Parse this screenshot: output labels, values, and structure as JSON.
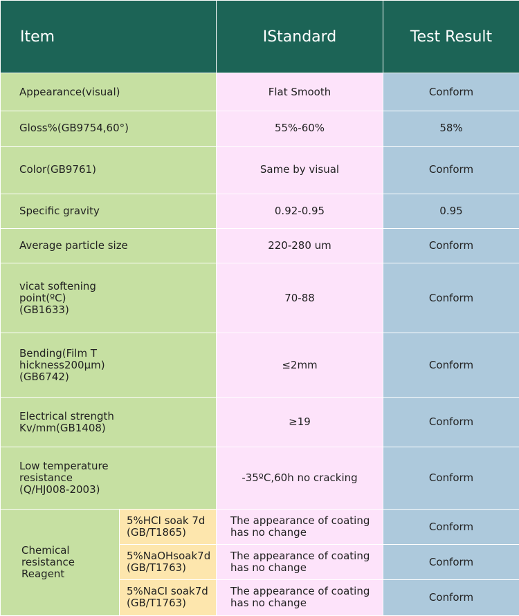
{
  "headers": {
    "item": "Item",
    "standard": "IStandard",
    "result": "Test Result"
  },
  "rows": [
    {
      "item": "Appearance(visual)",
      "standard": "Flat Smooth",
      "result": "Conform"
    },
    {
      "item": "Gloss%(GB9754,60°)",
      "standard": "55%-60%",
      "result": "58%"
    },
    {
      "item": "Color(GB9761)",
      "standard": "Same by visual",
      "result": "Conform"
    },
    {
      "item": "Specific gravity",
      "standard": "0.92-0.95",
      "result": "0.95"
    },
    {
      "item": "Average particle size",
      "standard": "220-280 um",
      "result": "Conform"
    },
    {
      "item_lines": [
        "vicat softening",
        "point(ºC)",
        "(GB1633)"
      ],
      "standard": "70-88",
      "result": "Conform"
    },
    {
      "item_lines": [
        "Bending(Film T",
        "hickness200μm)",
        "(GB6742)"
      ],
      "standard": "≤2mm",
      "result": "Conform"
    },
    {
      "item_lines": [
        "Electrical strength",
        "Kv/mm(GB1408)"
      ],
      "standard": "≥19",
      "result": "Conform"
    },
    {
      "item_lines": [
        "Low temperature",
        "resistance",
        "(Q/HJ008-2003)"
      ],
      "standard": "-35ºC,60h no cracking",
      "result": "Conform"
    }
  ],
  "chemical": {
    "label_lines": [
      "Chemical",
      "resistance",
      "Reagent"
    ],
    "subrows": [
      {
        "sub_lines": [
          "5%HCI soak 7d",
          "(GB/T1865)"
        ],
        "standard_lines": [
          "The appearance of coating",
          "has no change"
        ],
        "result": "Conform"
      },
      {
        "sub_lines": [
          "5%NaOHsoak7d",
          "(GB/T1763)"
        ],
        "standard_lines": [
          "The appearance of coating",
          "has no change"
        ],
        "result": "Conform"
      },
      {
        "sub_lines": [
          "5%NaCI soak7d",
          "(GB/T1763)"
        ],
        "standard_lines": [
          "The appearance of coating",
          "has no change"
        ],
        "result": "Conform"
      }
    ]
  },
  "colors": {
    "header_bg": "#1c6456",
    "item_bg": "#c6e0a2",
    "sub_bg": "#fde6ad",
    "standard_bg": "#fde3fa",
    "result_bg": "#adc9dc"
  }
}
